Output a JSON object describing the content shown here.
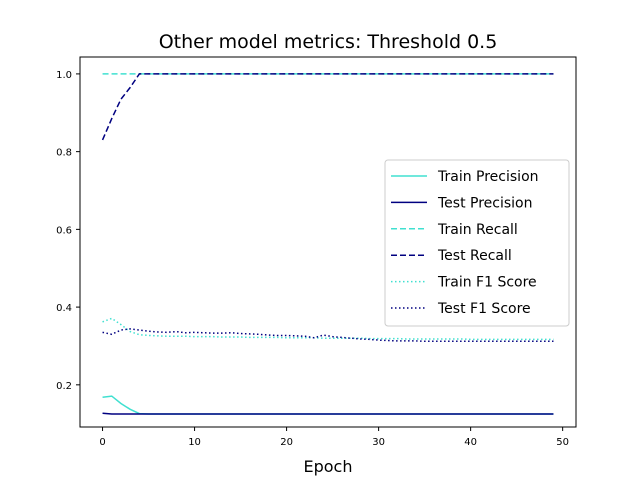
{
  "chart_data": {
    "type": "line",
    "title": "Other model metrics: Threshold 0.5",
    "xlabel": "Epoch",
    "ylabel": "",
    "xlim": [
      -2.45,
      51.45
    ],
    "ylim": [
      0.0915,
      1.0435
    ],
    "xticks": [
      0,
      10,
      20,
      30,
      40,
      50
    ],
    "yticks": [
      0.2,
      0.4,
      0.6,
      0.8,
      1.0
    ],
    "xtick_labels": [
      "0",
      "10",
      "20",
      "30",
      "40",
      "50"
    ],
    "ytick_labels": [
      "0.2",
      "0.4",
      "0.6",
      "0.8",
      "1.0"
    ],
    "grid": false,
    "legend_position": "center-right",
    "x": [
      0,
      1,
      2,
      3,
      4,
      5,
      6,
      7,
      8,
      9,
      10,
      11,
      12,
      13,
      14,
      15,
      16,
      17,
      18,
      19,
      20,
      21,
      22,
      23,
      24,
      25,
      26,
      27,
      28,
      29,
      30,
      31,
      32,
      33,
      34,
      35,
      36,
      37,
      38,
      39,
      40,
      41,
      42,
      43,
      44,
      45,
      46,
      47,
      48,
      49
    ],
    "series": [
      {
        "name": "Train Precision",
        "color": "#40e0d0",
        "linestyle": "solid",
        "values": [
          0.168,
          0.171,
          0.152,
          0.137,
          0.126,
          0.125,
          0.125,
          0.125,
          0.125,
          0.125,
          0.125,
          0.125,
          0.125,
          0.125,
          0.125,
          0.125,
          0.125,
          0.125,
          0.125,
          0.125,
          0.125,
          0.125,
          0.125,
          0.125,
          0.125,
          0.125,
          0.125,
          0.125,
          0.125,
          0.125,
          0.125,
          0.125,
          0.125,
          0.125,
          0.125,
          0.125,
          0.125,
          0.125,
          0.125,
          0.125,
          0.125,
          0.125,
          0.125,
          0.125,
          0.125,
          0.125,
          0.125,
          0.125,
          0.125,
          0.125
        ]
      },
      {
        "name": "Test Precision",
        "color": "#000080",
        "linestyle": "solid",
        "values": [
          0.127,
          0.125,
          0.125,
          0.125,
          0.125,
          0.125,
          0.125,
          0.125,
          0.125,
          0.125,
          0.125,
          0.125,
          0.125,
          0.125,
          0.125,
          0.125,
          0.125,
          0.125,
          0.125,
          0.125,
          0.125,
          0.125,
          0.125,
          0.125,
          0.125,
          0.125,
          0.125,
          0.125,
          0.125,
          0.125,
          0.125,
          0.125,
          0.125,
          0.125,
          0.125,
          0.125,
          0.125,
          0.125,
          0.125,
          0.125,
          0.125,
          0.125,
          0.125,
          0.125,
          0.125,
          0.125,
          0.125,
          0.125,
          0.125,
          0.125
        ]
      },
      {
        "name": "Train Recall",
        "color": "#40e0d0",
        "linestyle": "dashed",
        "values": [
          1.0,
          1.0,
          1.0,
          1.0,
          1.0,
          1.0,
          1.0,
          1.0,
          1.0,
          1.0,
          1.0,
          1.0,
          1.0,
          1.0,
          1.0,
          1.0,
          1.0,
          1.0,
          1.0,
          1.0,
          1.0,
          1.0,
          1.0,
          1.0,
          1.0,
          1.0,
          1.0,
          1.0,
          1.0,
          1.0,
          1.0,
          1.0,
          1.0,
          1.0,
          1.0,
          1.0,
          1.0,
          1.0,
          1.0,
          1.0,
          1.0,
          1.0,
          1.0,
          1.0,
          1.0,
          1.0,
          1.0,
          1.0,
          1.0,
          1.0
        ]
      },
      {
        "name": "Test Recall",
        "color": "#000080",
        "linestyle": "dashed",
        "values": [
          0.83,
          0.885,
          0.935,
          0.965,
          1.0,
          1.0,
          1.0,
          1.0,
          1.0,
          1.0,
          1.0,
          1.0,
          1.0,
          1.0,
          1.0,
          1.0,
          1.0,
          1.0,
          1.0,
          1.0,
          1.0,
          1.0,
          1.0,
          1.0,
          1.0,
          1.0,
          1.0,
          1.0,
          1.0,
          1.0,
          1.0,
          1.0,
          1.0,
          1.0,
          1.0,
          1.0,
          1.0,
          1.0,
          1.0,
          1.0,
          1.0,
          1.0,
          1.0,
          1.0,
          1.0,
          1.0,
          1.0,
          1.0,
          1.0,
          1.0
        ]
      },
      {
        "name": "Train F1 Score",
        "color": "#40e0d0",
        "linestyle": "dotted",
        "values": [
          0.362,
          0.371,
          0.355,
          0.337,
          0.329,
          0.327,
          0.326,
          0.325,
          0.325,
          0.325,
          0.324,
          0.324,
          0.324,
          0.323,
          0.323,
          0.323,
          0.322,
          0.322,
          0.322,
          0.322,
          0.321,
          0.321,
          0.321,
          0.321,
          0.32,
          0.32,
          0.32,
          0.32,
          0.32,
          0.319,
          0.319,
          0.319,
          0.319,
          0.318,
          0.318,
          0.318,
          0.318,
          0.318,
          0.318,
          0.318,
          0.317,
          0.317,
          0.317,
          0.317,
          0.317,
          0.317,
          0.317,
          0.317,
          0.317,
          0.317
        ]
      },
      {
        "name": "Test F1 Score",
        "color": "#000080",
        "linestyle": "dotted",
        "values": [
          0.335,
          0.33,
          0.341,
          0.344,
          0.341,
          0.338,
          0.336,
          0.335,
          0.337,
          0.334,
          0.335,
          0.334,
          0.333,
          0.333,
          0.334,
          0.332,
          0.331,
          0.33,
          0.328,
          0.327,
          0.327,
          0.326,
          0.325,
          0.321,
          0.328,
          0.324,
          0.322,
          0.32,
          0.318,
          0.317,
          0.315,
          0.314,
          0.313,
          0.313,
          0.313,
          0.312,
          0.312,
          0.312,
          0.312,
          0.312,
          0.312,
          0.312,
          0.312,
          0.312,
          0.312,
          0.312,
          0.312,
          0.312,
          0.312,
          0.312
        ]
      }
    ]
  }
}
